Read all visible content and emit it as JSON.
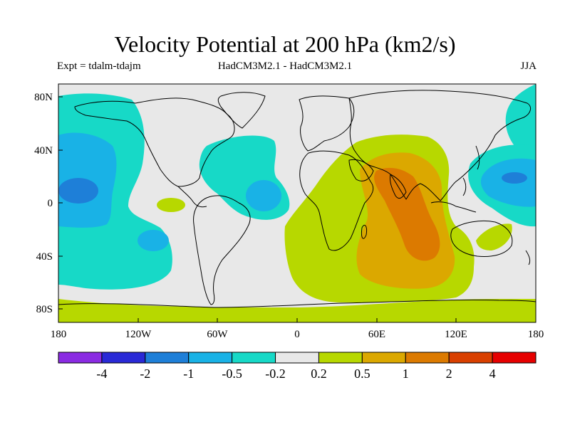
{
  "figure": {
    "title": "Velocity Potential at 200 hPa (km2/s)",
    "experiment": "Expt = tdalm-tdajm",
    "models": "HadCM3M2.1 - HadCM3M2.1",
    "season": "JJA"
  },
  "map": {
    "projection": "equirectangular",
    "lon_range": [
      -180,
      180
    ],
    "lat_range": [
      -90,
      90
    ],
    "x_tick_labels": [
      "180",
      "120W",
      "60W",
      "0",
      "60E",
      "120E",
      "180"
    ],
    "y_tick_labels": [
      "80N",
      "40N",
      "0",
      "40S",
      "80S"
    ],
    "land_outline": "coastlines"
  },
  "colorbar": {
    "levels": [
      "-4",
      "-2",
      "-1",
      "-0.5",
      "-0.2",
      "0.2",
      "0.5",
      "1",
      "2",
      "4"
    ],
    "colors": [
      "#8a2be2",
      "#2a2ad6",
      "#1e7fd8",
      "#19b2e6",
      "#17d9c7",
      "#e8e8e8",
      "#b7d800",
      "#dba800",
      "#dc7a00",
      "#d94000",
      "#e60000"
    ]
  }
}
